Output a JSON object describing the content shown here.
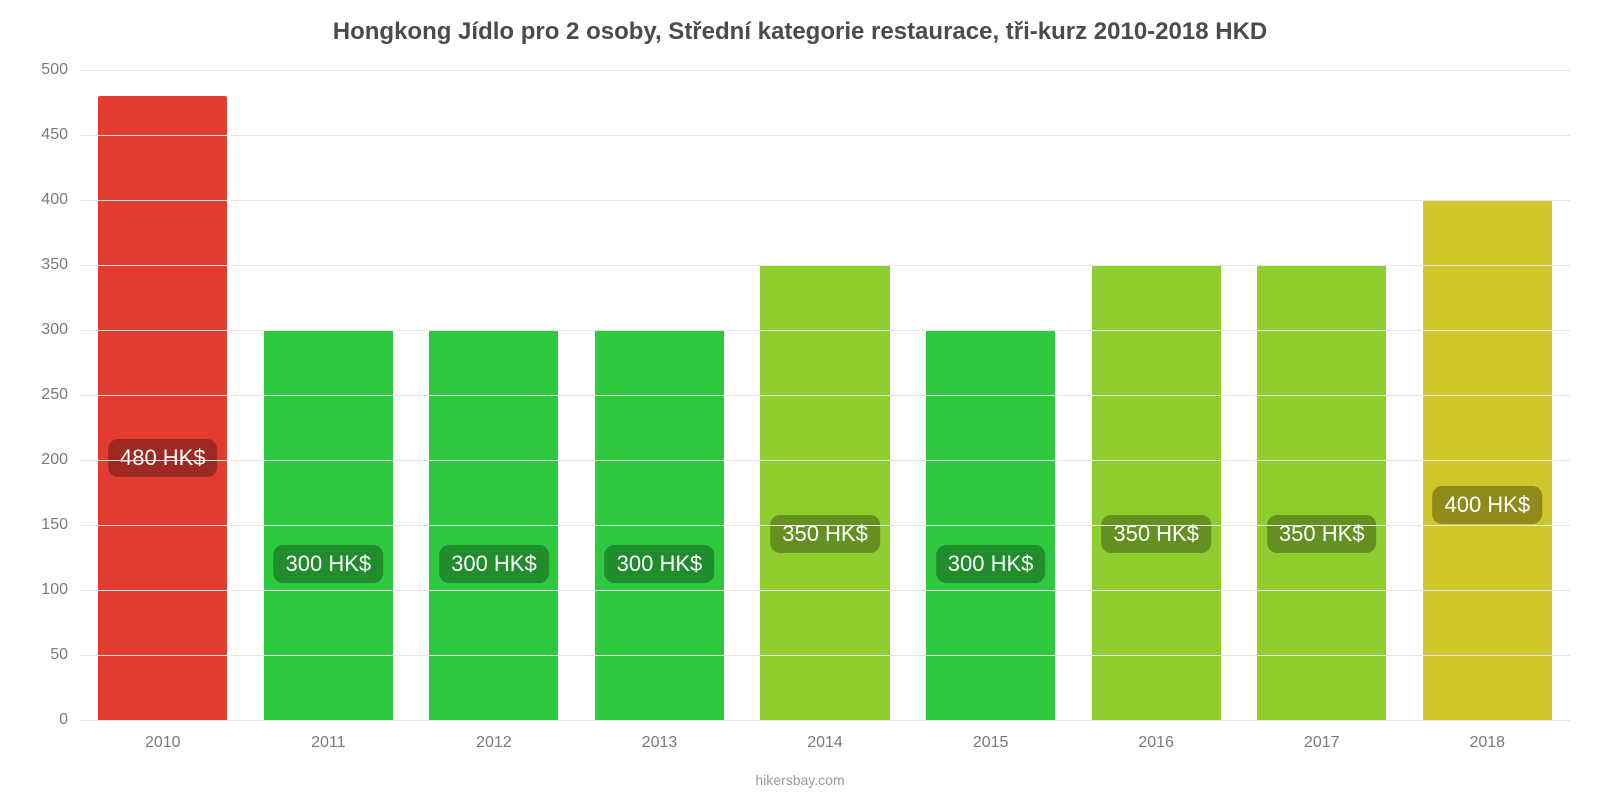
{
  "chart": {
    "type": "bar",
    "title": "Hongkong Jídlo pro 2 osoby, Střední kategorie restaurace, tři-kurz 2010-2018 HKD",
    "title_fontsize": 24,
    "title_color": "#4b4b4b",
    "background_color": "#ffffff",
    "grid_color": "#e6e6e6",
    "tick_color": "#7a7a7a",
    "tick_fontsize": 16,
    "ylim": [
      0,
      500
    ],
    "ytick_step": 50,
    "yticks": [
      0,
      50,
      100,
      150,
      200,
      250,
      300,
      350,
      400,
      450,
      500
    ],
    "categories": [
      "2010",
      "2011",
      "2012",
      "2013",
      "2014",
      "2015",
      "2016",
      "2017",
      "2018"
    ],
    "values": [
      480,
      300,
      300,
      300,
      350,
      300,
      350,
      350,
      400
    ],
    "value_labels": [
      "480 HK$",
      "300 HK$",
      "300 HK$",
      "300 HK$",
      "350 HK$",
      "300 HK$",
      "350 HK$",
      "350 HK$",
      "400 HK$"
    ],
    "bar_colors": [
      "#e23b30",
      "#2fc93f",
      "#2fc93f",
      "#2fc93f",
      "#8fce2f",
      "#2fc93f",
      "#8fce2f",
      "#8fce2f",
      "#cfc62a"
    ],
    "bar_width_ratio": 0.78,
    "label_bg": "rgba(0,0,0,0.30)",
    "label_color": "#ffffff",
    "label_fontsize": 22,
    "source": "hikersbay.com",
    "source_color": "#9a9a9a",
    "source_fontsize": 14
  }
}
